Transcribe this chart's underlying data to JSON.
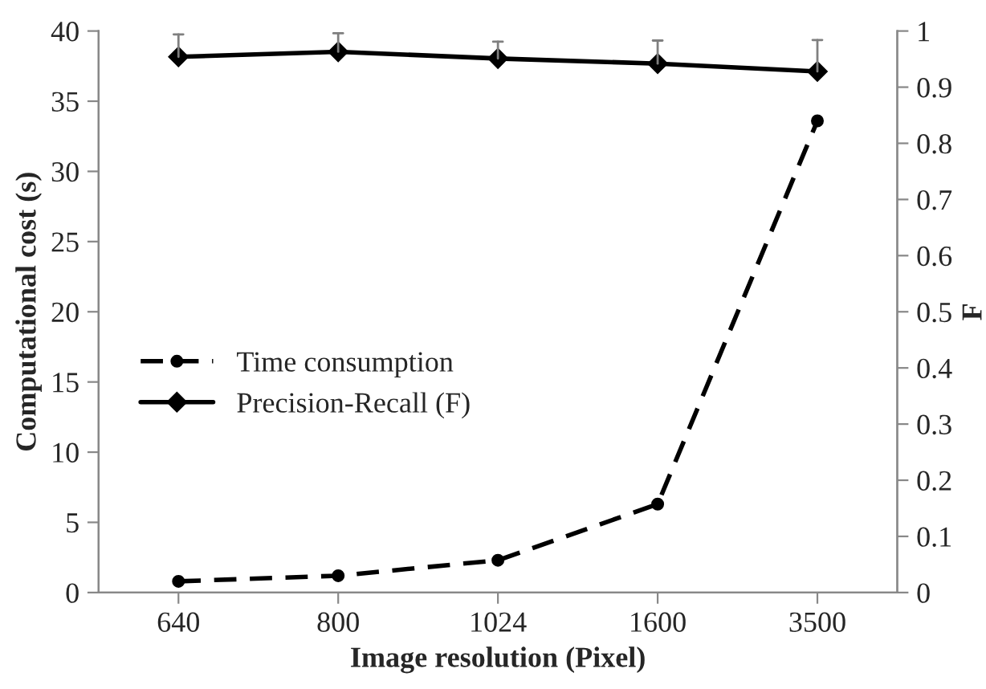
{
  "chart_data": {
    "type": "line",
    "xlabel": "Image resolution (Pixel)",
    "ylabel": "Computational cost (s)",
    "y2label": "F",
    "categories": [
      "640",
      "800",
      "1024",
      "1600",
      "3500"
    ],
    "series": [
      {
        "name": "Time consumption",
        "color": "#000000",
        "values": [
          0.8,
          1.2,
          2.3,
          6.3,
          33.6
        ],
        "line_style": "dashed",
        "marker": "circle"
      },
      {
        "name": "Precision-Recall (F)",
        "color": "#000000",
        "values": [
          0.954,
          0.963,
          0.951,
          0.942,
          0.928
        ],
        "axis": "y2",
        "line_style": "solid",
        "marker": "diamond",
        "errors": [
          [
            0.954,
            0.994
          ],
          [
            0.963,
            0.996
          ],
          [
            0.951,
            0.981
          ],
          [
            0.942,
            0.983
          ],
          [
            0.928,
            0.984
          ]
        ]
      }
    ],
    "ylim": [
      0,
      40
    ],
    "yticks": [
      0,
      5,
      10,
      15,
      20,
      25,
      30,
      35,
      40
    ],
    "y2lim": [
      0,
      1
    ],
    "y2ticks": [
      0,
      0.1,
      0.2,
      0.3,
      0.4,
      0.5,
      0.6,
      0.7,
      0.8,
      0.9,
      1
    ],
    "grid": false,
    "legend": "left"
  }
}
